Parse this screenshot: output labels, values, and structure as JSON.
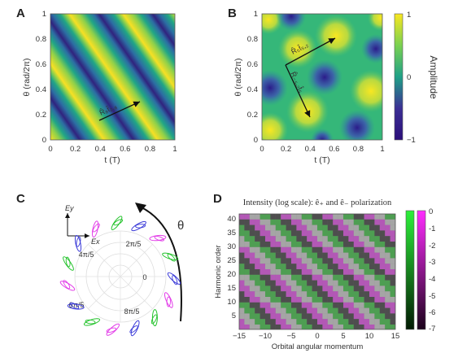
{
  "panels": {
    "a": {
      "letter": "A",
      "xlabel": "t (T)",
      "ylabel": "θ (rad/2π)",
      "xticks": [
        "0",
        "0.2",
        "0.4",
        "0.6",
        "0.8",
        "1"
      ],
      "yticks": [
        "0",
        "0.2",
        "0.4",
        "0.6",
        "0.8",
        "1"
      ],
      "arrow_label": "R̂₈t̂₂,₈"
    },
    "b": {
      "letter": "B",
      "xlabel": "t (T)",
      "ylabel": "θ (rad/2π)",
      "xticks": [
        "0",
        "0.2",
        "0.4",
        "0.6",
        "0.8",
        "1"
      ],
      "yticks": [
        "0",
        "0.2",
        "0.4",
        "0.6",
        "0.8",
        "1"
      ],
      "arrow_label_1": "R̂₅t̂₅,₂",
      "arrow_label_2": "R̂₋₅,₂t̂₅",
      "colorbar_label": "Amplitude",
      "colorbar_ticks": [
        "1",
        "0",
        "−1"
      ]
    },
    "c": {
      "letter": "C",
      "axis_y": "Ey",
      "axis_x": "Ex",
      "theta": "θ",
      "angle_labels": [
        "2π/5",
        "4π/5",
        "0",
        "6π/5",
        "8π/5"
      ]
    },
    "d": {
      "letter": "D",
      "title": "Intensity (log scale): ê₊ and ê₋ polarization",
      "xlabel": "Orbital angular momentum",
      "ylabel": "Harmonic order",
      "xticks": [
        "−15",
        "−10",
        "−5",
        "0",
        "5",
        "10",
        "15"
      ],
      "yticks": [
        "40",
        "35",
        "30",
        "25",
        "20",
        "15",
        "10",
        "5"
      ],
      "colorbar_ticks": [
        "0",
        "-1",
        "-2",
        "-3",
        "-4",
        "-5",
        "-6",
        "-7"
      ]
    }
  },
  "colors": {
    "green": "#22c22a",
    "magenta": "#e23ce8",
    "blue": "#3a3ad8"
  }
}
